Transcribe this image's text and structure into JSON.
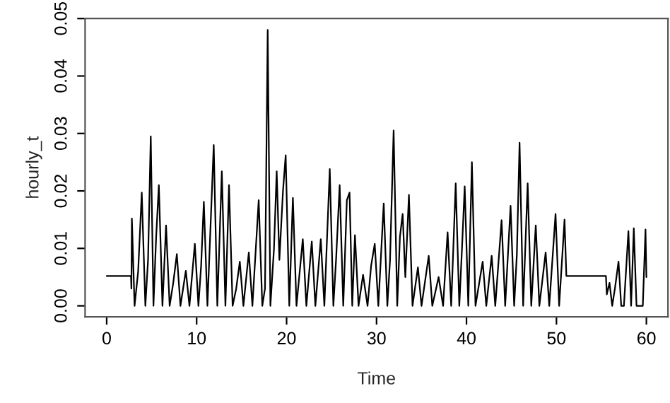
{
  "chart_data": {
    "type": "line",
    "xlabel": "Time",
    "ylabel": "hourly_t",
    "x": [
      0,
      2.7,
      2.75,
      2.8,
      3.1,
      3.5,
      3.9,
      4.3,
      4.6,
      4.9,
      5.2,
      5.5,
      5.8,
      6.2,
      6.6,
      7.0,
      7.4,
      7.8,
      8.2,
      8.8,
      9.2,
      9.8,
      10.2,
      10.5,
      10.8,
      11.2,
      11.9,
      12.3,
      12.8,
      13.2,
      13.6,
      14.0,
      14.4,
      14.8,
      15.2,
      15.8,
      16.2,
      16.9,
      17.3,
      17.6,
      17.9,
      18.2,
      18.6,
      18.9,
      19.2,
      19.6,
      19.9,
      20.3,
      20.7,
      21.1,
      21.8,
      22.2,
      22.8,
      23.2,
      23.8,
      24.2,
      24.8,
      25.2,
      25.5,
      25.9,
      26.3,
      26.7,
      27.0,
      27.3,
      27.6,
      28.0,
      28.5,
      29.0,
      29.4,
      29.8,
      30.2,
      30.8,
      31.2,
      31.5,
      31.9,
      32.3,
      32.6,
      32.9,
      33.2,
      33.6,
      34.0,
      34.6,
      35.0,
      35.8,
      36.2,
      36.9,
      37.4,
      37.9,
      38.3,
      38.8,
      39.2,
      39.5,
      39.8,
      40.2,
      40.6,
      41.0,
      41.8,
      42.2,
      42.8,
      43.2,
      43.9,
      44.3,
      44.9,
      45.3,
      45.6,
      45.9,
      46.3,
      46.8,
      47.2,
      47.7,
      48.1,
      48.8,
      49.2,
      49.9,
      50.3,
      50.9,
      51.1,
      55.5,
      55.6,
      55.9,
      56.2,
      56.5,
      56.9,
      57.2,
      57.5,
      58.0,
      58.3,
      58.6,
      58.9,
      59.6,
      59.9,
      60
    ],
    "series": [
      {
        "color": "#000000",
        "values": [
          0.0052,
          0.0052,
          0.003,
          0.0152,
          0,
          0.006,
          0.0197,
          0,
          0.008,
          0.0295,
          0,
          0.012,
          0.021,
          0,
          0.014,
          0,
          0.004,
          0.009,
          0,
          0.0061,
          0,
          0.0108,
          0,
          0.007,
          0.0181,
          0,
          0.028,
          0,
          0.0234,
          0,
          0.021,
          0,
          0.003,
          0.0077,
          0,
          0.0093,
          0,
          0.0184,
          0,
          0.003,
          0.048,
          0,
          0.01,
          0.0234,
          0.008,
          0.02,
          0.0262,
          0,
          0.0188,
          0,
          0.0116,
          0,
          0.0112,
          0,
          0.0116,
          0,
          0.0238,
          0,
          0.008,
          0.021,
          0,
          0.0184,
          0.0197,
          0,
          0.0123,
          0,
          0.0054,
          0,
          0.007,
          0.0108,
          0,
          0.0178,
          0,
          0.008,
          0.0305,
          0,
          0.012,
          0.016,
          0.005,
          0.0193,
          0,
          0.0067,
          0,
          0.0087,
          0,
          0.005,
          0,
          0.0128,
          0,
          0.0213,
          0,
          0.01,
          0.0208,
          0,
          0.025,
          0,
          0.0077,
          0,
          0.0087,
          0,
          0.0149,
          0,
          0.0174,
          0,
          0.009,
          0.0284,
          0,
          0.0213,
          0,
          0.014,
          0,
          0.0093,
          0,
          0.016,
          0,
          0.015,
          0.0052,
          0.0052,
          0.002,
          0.004,
          0,
          0.003,
          0.0077,
          0,
          0,
          0.013,
          0,
          0.0135,
          0,
          0,
          0.0133,
          0.005
        ]
      }
    ],
    "xlim": [
      -2.4,
      62.4
    ],
    "ylim": [
      -0.0019,
      0.05
    ],
    "xticks": [
      0,
      10,
      20,
      30,
      40,
      50,
      60
    ],
    "yticks": [
      {
        "value": 0,
        "label": "0.00"
      },
      {
        "value": 0.01,
        "label": "0.01"
      },
      {
        "value": 0.02,
        "label": "0.02"
      },
      {
        "value": 0.03,
        "label": "0.03"
      },
      {
        "value": 0.04,
        "label": "0.04"
      },
      {
        "value": 0.05,
        "label": "0.05"
      }
    ],
    "grid": false
  }
}
